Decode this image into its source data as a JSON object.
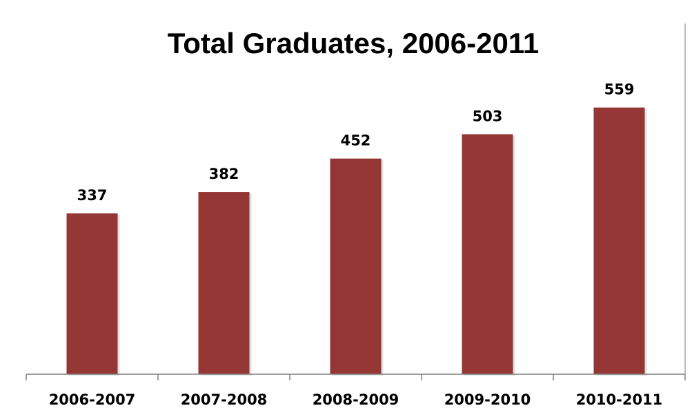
{
  "chart_data": {
    "type": "bar",
    "title": "Total Graduates, 2006-2011",
    "xlabel": "",
    "ylabel": "",
    "categories": [
      "2006-2007",
      "2007-2008",
      "2008-2009",
      "2009-2010",
      "2010-2011"
    ],
    "values": [
      337,
      382,
      452,
      503,
      559
    ],
    "ylim": [
      0,
      600
    ],
    "grid": false,
    "legend": "none",
    "bar_color": "#943634",
    "axis_color": "#808080",
    "frame_color": "#a6a6a6"
  }
}
